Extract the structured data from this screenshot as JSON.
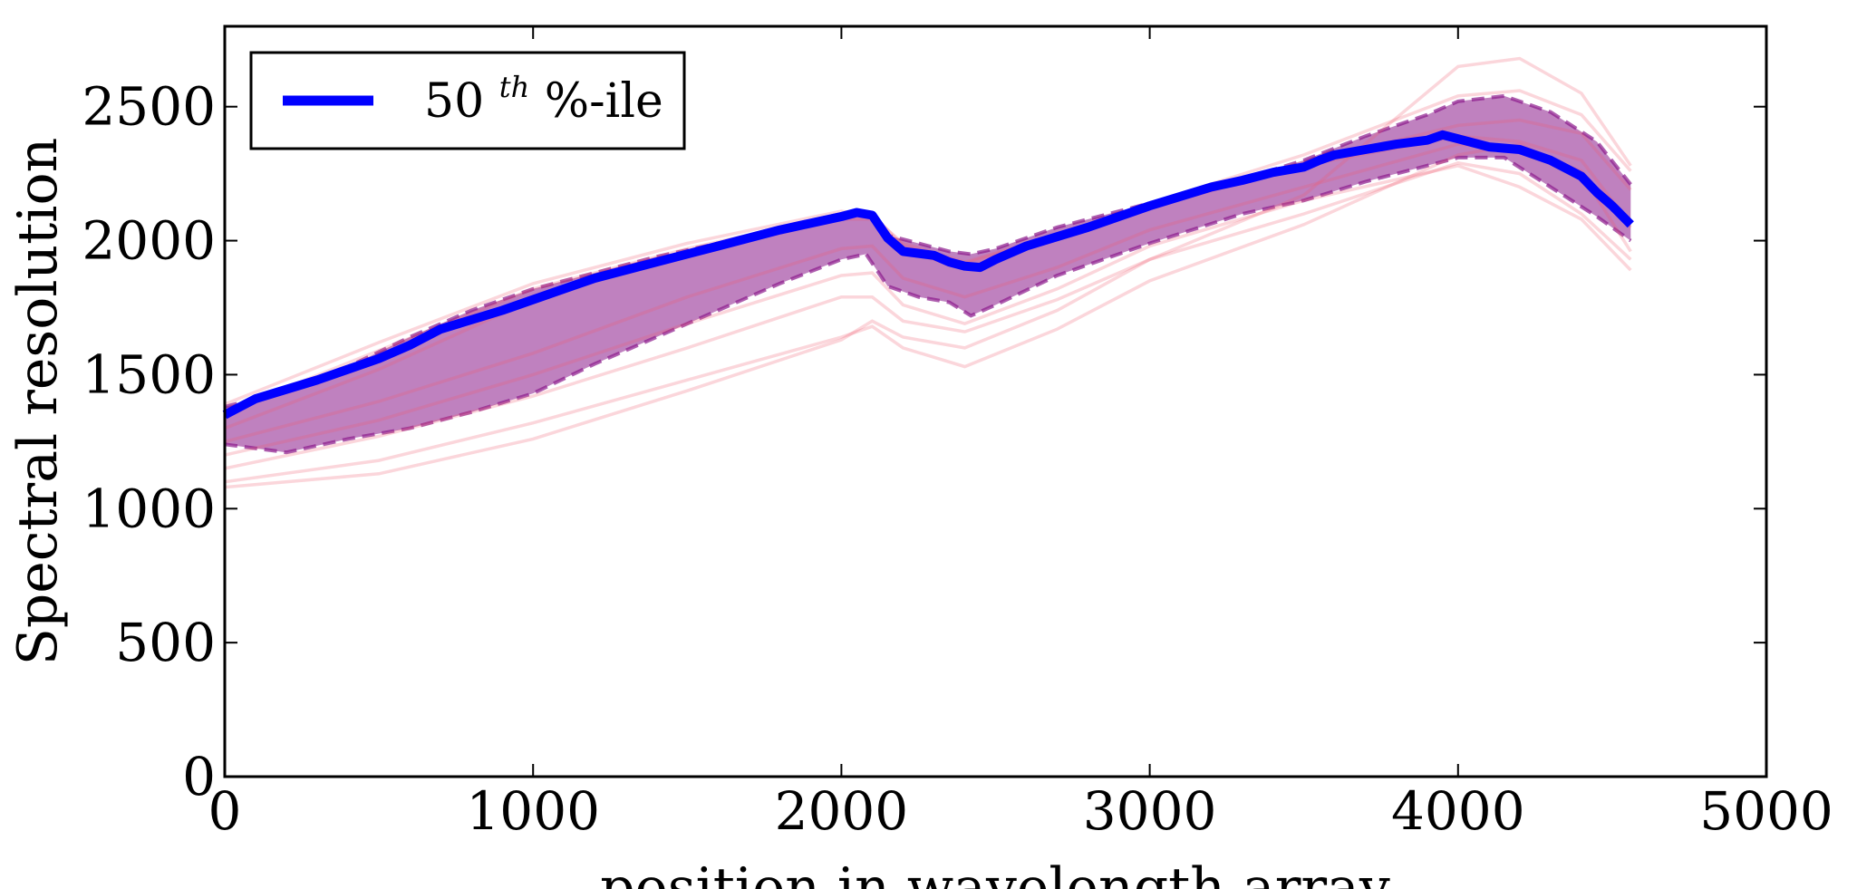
{
  "chart_data": {
    "type": "line",
    "title": "",
    "xlabel": "position in wavelength array",
    "ylabel": "Spectral resolution",
    "xlim": [
      0,
      5000
    ],
    "ylim": [
      0,
      2800
    ],
    "xticks": [
      0,
      1000,
      2000,
      3000,
      4000,
      5000
    ],
    "yticks": [
      0,
      500,
      1000,
      1500,
      2000,
      2500
    ],
    "xtick_labels": [
      "0",
      "1000",
      "2000",
      "3000",
      "4000",
      "5000"
    ],
    "ytick_labels": [
      "0",
      "500",
      "1000",
      "1500",
      "2000",
      "2500"
    ],
    "grid": false,
    "legend": {
      "placement": "top-left",
      "entries": [
        {
          "label_main": "50",
          "label_sup": "th",
          "label_rest": " %-ile",
          "color": "#0000ff"
        }
      ]
    },
    "median": {
      "color": "#0000ff",
      "x": [
        0,
        100,
        300,
        500,
        600,
        700,
        900,
        1000,
        1200,
        1400,
        1600,
        1800,
        2000,
        2050,
        2100,
        2150,
        2200,
        2300,
        2350,
        2400,
        2450,
        2500,
        2600,
        2800,
        3000,
        3200,
        3300,
        3400,
        3500,
        3550,
        3600,
        3700,
        3800,
        3900,
        3950,
        4000,
        4100,
        4200,
        4300,
        4400,
        4450,
        4500,
        4560
      ],
      "y": [
        1350,
        1410,
        1480,
        1560,
        1610,
        1670,
        1740,
        1780,
        1860,
        1920,
        1980,
        2040,
        2090,
        2105,
        2095,
        2010,
        1960,
        1945,
        1920,
        1905,
        1900,
        1930,
        1980,
        2050,
        2130,
        2200,
        2225,
        2255,
        2275,
        2300,
        2320,
        2340,
        2360,
        2375,
        2395,
        2380,
        2350,
        2340,
        2300,
        2240,
        2180,
        2130,
        2060
      ]
    },
    "band": {
      "color": "#8b1a8b",
      "x": [
        0,
        200,
        400,
        600,
        800,
        1000,
        1200,
        1400,
        1600,
        1800,
        2000,
        2080,
        2150,
        2250,
        2350,
        2420,
        2500,
        2700,
        3000,
        3300,
        3500,
        3700,
        3900,
        4000,
        4150,
        4300,
        4450,
        4560
      ],
      "upper": [
        1380,
        1440,
        1530,
        1640,
        1740,
        1820,
        1880,
        1940,
        1990,
        2050,
        2100,
        2110,
        2020,
        1990,
        1960,
        1950,
        1970,
        2050,
        2140,
        2230,
        2300,
        2390,
        2470,
        2520,
        2540,
        2480,
        2370,
        2210
      ],
      "lower": [
        1240,
        1210,
        1260,
        1300,
        1360,
        1430,
        1540,
        1640,
        1740,
        1840,
        1930,
        1950,
        1830,
        1790,
        1770,
        1720,
        1760,
        1870,
        1990,
        2100,
        2150,
        2220,
        2280,
        2310,
        2310,
        2200,
        2090,
        2000
      ]
    },
    "individual_runs": {
      "color": "#f05a6e",
      "series": [
        {
          "x": [
            0,
            500,
            1000,
            1500,
            2000,
            2100,
            2200,
            2400,
            2700,
            3000,
            3500,
            4000,
            4200,
            4400,
            4560
          ],
          "y": [
            1390,
            1620,
            1840,
            1990,
            2110,
            2090,
            1990,
            1920,
            2020,
            2140,
            2320,
            2540,
            2560,
            2470,
            2260
          ]
        },
        {
          "x": [
            0,
            500,
            1000,
            1500,
            2000,
            2100,
            2200,
            2400,
            2700,
            3000,
            3500,
            4000,
            4200,
            4400,
            4560
          ],
          "y": [
            1300,
            1520,
            1780,
            1950,
            2080,
            2080,
            1960,
            1900,
            2010,
            2120,
            2290,
            2430,
            2450,
            2400,
            2190
          ]
        },
        {
          "x": [
            0,
            500,
            1000,
            1500,
            2000,
            2100,
            2200,
            2400,
            2700,
            3000,
            3500,
            4000,
            4200,
            4400,
            4560
          ],
          "y": [
            1360,
            1590,
            1820,
            1970,
            2100,
            2100,
            1980,
            1915,
            2020,
            2125,
            2280,
            2390,
            2370,
            2300,
            2060
          ]
        },
        {
          "x": [
            0,
            500,
            1000,
            1500,
            2000,
            2100,
            2200,
            2400,
            2700,
            3000,
            3500,
            4000,
            4200,
            4400,
            4560
          ],
          "y": [
            1250,
            1400,
            1580,
            1790,
            1970,
            1980,
            1860,
            1790,
            1900,
            2040,
            2200,
            2360,
            2340,
            2260,
            2050
          ]
        },
        {
          "x": [
            0,
            500,
            1000,
            1500,
            2000,
            2100,
            2200,
            2400,
            2700,
            3000,
            3500,
            4000,
            4200,
            4400,
            4560
          ],
          "y": [
            1150,
            1270,
            1420,
            1600,
            1790,
            1790,
            1700,
            1660,
            1780,
            1930,
            2100,
            2290,
            2250,
            2100,
            1930
          ]
        },
        {
          "x": [
            0,
            500,
            1000,
            1500,
            2000,
            2100,
            2200,
            2400,
            2700,
            3000,
            3500,
            4000,
            4200,
            4400,
            4560
          ],
          "y": [
            1100,
            1180,
            1320,
            1480,
            1640,
            1680,
            1600,
            1530,
            1670,
            1850,
            2060,
            2320,
            2360,
            2250,
            1960
          ]
        },
        {
          "x": [
            0,
            500,
            1000,
            1500,
            2000,
            2100,
            2200,
            2400,
            2700,
            3000,
            3500,
            4000,
            4200,
            4400,
            4560
          ],
          "y": [
            1080,
            1130,
            1260,
            1440,
            1630,
            1700,
            1640,
            1600,
            1740,
            1930,
            2170,
            2650,
            2680,
            2550,
            2280
          ]
        },
        {
          "x": [
            0,
            500,
            1000,
            1500,
            2000,
            2100,
            2200,
            2400,
            2700,
            3000,
            3500,
            4000,
            4200,
            4400,
            4560
          ],
          "y": [
            1200,
            1330,
            1500,
            1690,
            1870,
            1880,
            1760,
            1690,
            1820,
            1980,
            2150,
            2280,
            2200,
            2080,
            1890
          ]
        }
      ]
    }
  }
}
